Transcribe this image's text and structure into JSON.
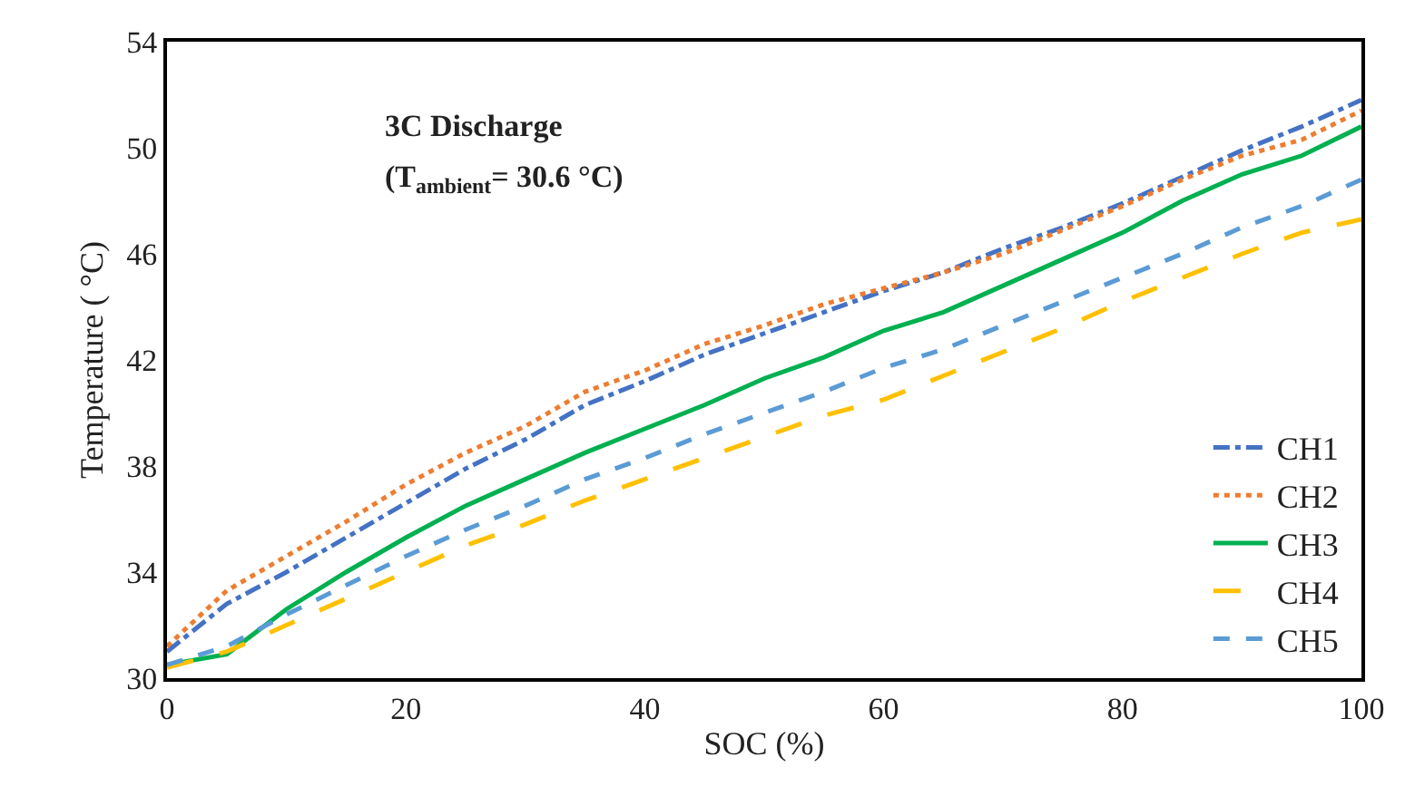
{
  "chart_data": {
    "type": "line",
    "xlabel": "SOC (%)",
    "ylabel": "Temperature ( °C)",
    "annotations": [
      "3C Discharge",
      "(T$_{ambient}$= 30.6 °C)"
    ],
    "x": [
      0,
      5,
      10,
      15,
      20,
      25,
      30,
      35,
      40,
      45,
      50,
      55,
      60,
      65,
      70,
      75,
      80,
      85,
      90,
      95,
      100
    ],
    "series": [
      {
        "name": "CH1",
        "color": "#4472c4",
        "line_style": "dashdot",
        "values": [
          31.0,
          32.8,
          34.0,
          35.3,
          36.6,
          37.9,
          39.0,
          40.3,
          41.2,
          42.2,
          43.0,
          43.8,
          44.6,
          45.3,
          46.2,
          47.0,
          47.9,
          48.9,
          49.9,
          50.8,
          51.8
        ]
      },
      {
        "name": "CH2",
        "color": "#ed7d31",
        "line_style": "dotted",
        "values": [
          31.2,
          33.3,
          34.6,
          35.9,
          37.3,
          38.5,
          39.5,
          40.8,
          41.6,
          42.6,
          43.3,
          44.1,
          44.7,
          45.3,
          46.0,
          46.9,
          47.8,
          48.8,
          49.7,
          50.3,
          51.4
        ]
      },
      {
        "name": "CH3",
        "color": "#00b050",
        "line_style": "solid",
        "values": [
          30.5,
          30.9,
          32.6,
          34.0,
          35.3,
          36.5,
          37.5,
          38.5,
          39.4,
          40.3,
          41.3,
          42.1,
          43.1,
          43.8,
          44.8,
          45.8,
          46.8,
          48.0,
          49.0,
          49.7,
          50.8
        ]
      },
      {
        "name": "CH4",
        "color": "#ffc000",
        "line_style": "longdash",
        "values": [
          30.4,
          31.0,
          32.0,
          33.0,
          34.0,
          35.0,
          35.8,
          36.7,
          37.5,
          38.3,
          39.1,
          39.9,
          40.5,
          41.4,
          42.3,
          43.2,
          44.2,
          45.1,
          46.0,
          46.8,
          47.3
        ]
      },
      {
        "name": "CH5",
        "color": "#5b9bd5",
        "line_style": "dashed",
        "values": [
          30.5,
          31.2,
          32.4,
          33.5,
          34.6,
          35.6,
          36.5,
          37.5,
          38.3,
          39.2,
          40.0,
          40.8,
          41.7,
          42.4,
          43.3,
          44.2,
          45.1,
          46.0,
          47.0,
          47.8,
          48.8
        ]
      }
    ],
    "xlim": [
      0,
      100
    ],
    "xticks": [
      0,
      20,
      40,
      60,
      80,
      100
    ],
    "ylim": [
      30,
      54
    ],
    "yticks": [
      30,
      34,
      38,
      42,
      46,
      50,
      54
    ],
    "legend": "bottom right",
    "marker": "none"
  }
}
